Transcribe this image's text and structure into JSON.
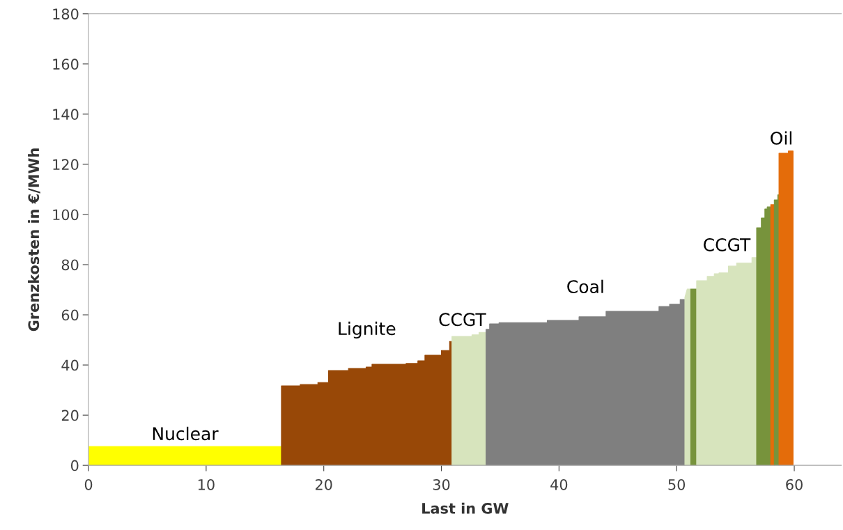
{
  "chart_data": {
    "type": "area",
    "xlabel": "Last in GW",
    "ylabel": "Grenzkosten in €/MWh",
    "xlim": [
      0,
      64
    ],
    "xticks": [
      0,
      10,
      20,
      30,
      40,
      50,
      60
    ],
    "ylim": [
      0,
      180
    ],
    "yticks": [
      0,
      20,
      40,
      60,
      80,
      100,
      120,
      140,
      160,
      180
    ],
    "grid": false,
    "legend": false,
    "series": [
      {
        "name": "Nuclear",
        "color": "#ffff00",
        "x": [
          0,
          16.4
        ],
        "values": [
          7.5,
          7.5
        ]
      },
      {
        "name": "Lignite",
        "color": "#984807",
        "x": [
          16.4,
          18.0,
          18.0,
          19.5,
          19.5,
          20.4,
          20.4,
          22.1,
          22.1,
          23.6,
          23.6,
          24.1,
          24.1,
          27.0,
          27.0,
          28.0,
          28.0,
          28.6,
          28.6,
          30.0,
          30.0,
          30.7,
          30.7,
          30.9
        ],
        "values": [
          31.7,
          31.7,
          32.2,
          32.2,
          33.0,
          33.0,
          37.8,
          37.8,
          38.6,
          38.6,
          39.2,
          39.2,
          40.3,
          40.3,
          40.6,
          40.6,
          41.7,
          41.7,
          43.9,
          43.9,
          45.8,
          45.8,
          49.4,
          49.4
        ]
      },
      {
        "name": "CCGT",
        "color": "#d7e4bd",
        "x": [
          30.9,
          32.6,
          32.6,
          33.2,
          33.2,
          33.8
        ],
        "values": [
          51.4,
          51.4,
          52.0,
          52.0,
          53.0,
          53.0
        ]
      },
      {
        "name": "Coal",
        "color": "#7f7f7f",
        "x": [
          33.8,
          34.1,
          34.1,
          34.9,
          34.9,
          39.0,
          39.0,
          41.7,
          41.7,
          44.0,
          44.0,
          48.5,
          48.5,
          49.4,
          49.4,
          50.3,
          50.3,
          50.7
        ],
        "values": [
          54.2,
          54.2,
          56.4,
          56.4,
          56.9,
          56.9,
          57.8,
          57.8,
          59.2,
          59.2,
          61.4,
          61.4,
          63.3,
          63.3,
          64.2,
          64.2,
          66.1,
          66.1
        ]
      },
      {
        "color": "#d7e4bd",
        "x": [
          50.7,
          50.9,
          51.2
        ],
        "values": [
          67.0,
          70.3,
          70.3
        ]
      },
      {
        "color": "#77933c",
        "x": [
          51.2,
          51.7
        ],
        "values": [
          70.3,
          70.3
        ]
      },
      {
        "name": "CCGT",
        "color": "#d7e4bd",
        "x": [
          51.7,
          52.6,
          52.6,
          53.2,
          53.2,
          53.6,
          53.6,
          54.4,
          54.4,
          55.1,
          55.1,
          56.4,
          56.4,
          56.8
        ],
        "values": [
          73.6,
          73.6,
          75.3,
          75.3,
          76.4,
          76.4,
          76.7,
          76.7,
          79.4,
          79.4,
          80.6,
          80.6,
          82.8,
          82.8
        ]
      },
      {
        "color": "#77933c",
        "x": [
          56.8,
          57.2,
          57.2,
          57.5,
          57.5,
          57.7,
          57.7,
          58.0
        ],
        "values": [
          94.7,
          94.7,
          98.6,
          98.6,
          102.2,
          102.2,
          103.0,
          103.0
        ]
      },
      {
        "color": "#e46c0a",
        "x": [
          58.0,
          58.3
        ],
        "values": [
          103.9,
          103.9
        ]
      },
      {
        "color": "#77933c",
        "x": [
          58.3,
          58.6,
          58.6,
          58.7
        ],
        "values": [
          105.8,
          105.8,
          107.8,
          107.8
        ]
      },
      {
        "name": "Oil",
        "color": "#e46c0a",
        "x": [
          58.7,
          59.5,
          59.5,
          59.9
        ],
        "values": [
          124.4,
          124.4,
          125.3,
          125.3
        ]
      }
    ]
  }
}
